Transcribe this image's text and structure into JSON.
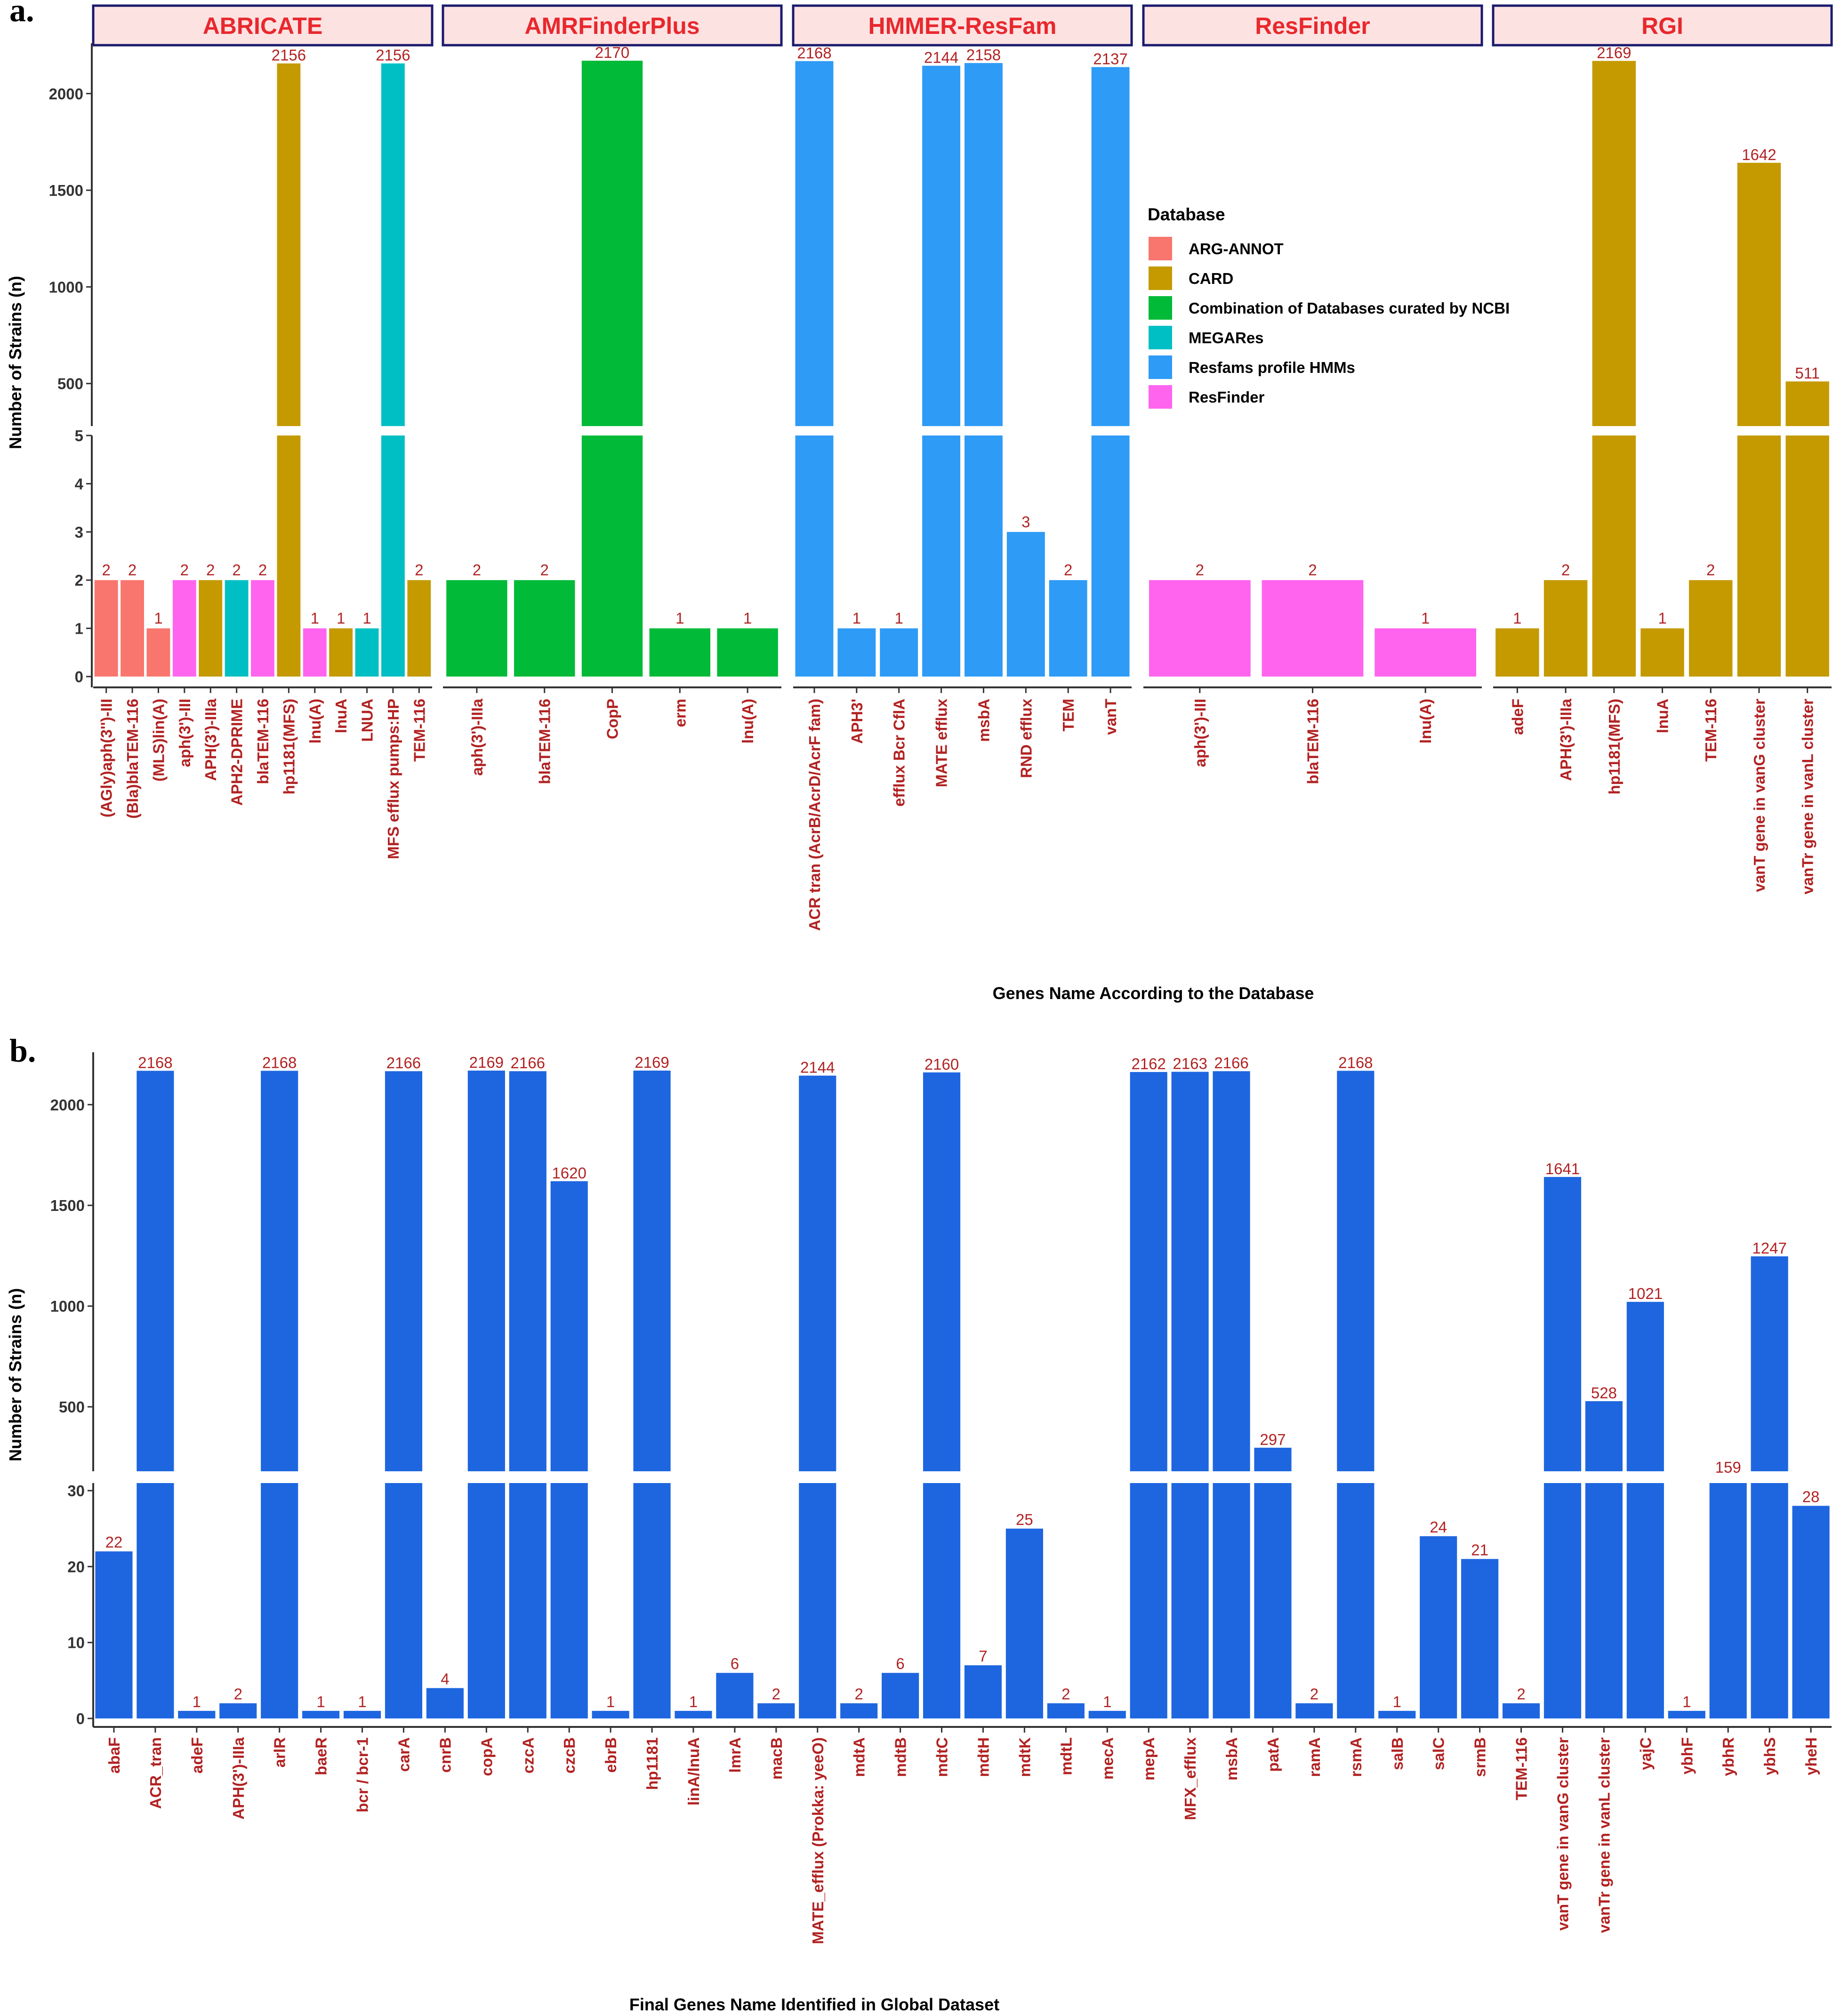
{
  "panel_a_label": "a.",
  "panel_b_label": "b.",
  "colors": {
    "ARG-ANNOT": "#F8766D",
    "CARD": "#C49A00",
    "Combination of Databases curated by NCBI": "#00BA38",
    "MEGARes": "#00BFC4",
    "Resfams profile HMMs": "#2E9BF6",
    "ResFinder": "#FF64EF",
    "panel_b_bar": "#1E66E0",
    "value_label": "#B22222",
    "strip_fill": "#FDE2E2",
    "strip_border": "#1A1A6E",
    "strip_text": "#E8282D"
  },
  "chart_data": [
    {
      "type": "bar",
      "title": "",
      "xlabel": "Genes Name According to the Database",
      "ylabel": "Number of Strains (n)",
      "axis_break": {
        "lower_ylim": [
          0,
          5
        ],
        "upper_ylim": [
          280,
          2260
        ]
      },
      "upper_ticks": [
        500,
        1000,
        1500,
        2000
      ],
      "lower_ticks": [
        0,
        1,
        2,
        3,
        4,
        5
      ],
      "legend": {
        "title": "Database",
        "position": "right",
        "entries": [
          "ARG-ANNOT",
          "CARD",
          "Combination of Databases curated by NCBI",
          "MEGARes",
          "Resfams profile HMMs",
          "ResFinder"
        ]
      },
      "facets": [
        {
          "name": "ABRICATE",
          "bars": [
            {
              "gene": "(AGly)aph(3'')-III",
              "value": 2,
              "db": "ARG-ANNOT"
            },
            {
              "gene": "(Bla)blaTEM-116",
              "value": 2,
              "db": "ARG-ANNOT"
            },
            {
              "gene": "(MLS)lin(A)",
              "value": 1,
              "db": "ARG-ANNOT"
            },
            {
              "gene": "aph(3')-III",
              "value": 2,
              "db": "ResFinder"
            },
            {
              "gene": "APH(3')-IIIa",
              "value": 2,
              "db": "CARD"
            },
            {
              "gene": "APH2-DPRIME",
              "value": 2,
              "db": "MEGARes"
            },
            {
              "gene": "blaTEM-116",
              "value": 2,
              "db": "ResFinder"
            },
            {
              "gene": "hp1181(MFS)",
              "value": 2156,
              "db": "CARD"
            },
            {
              "gene": "lnu(A)",
              "value": 1,
              "db": "ResFinder"
            },
            {
              "gene": "lnuA",
              "value": 1,
              "db": "CARD"
            },
            {
              "gene": "LNUA",
              "value": 1,
              "db": "MEGARes"
            },
            {
              "gene": "MFS efflux pumps:HP",
              "value": 2156,
              "db": "MEGARes"
            },
            {
              "gene": "TEM-116",
              "value": 2,
              "db": "CARD"
            }
          ]
        },
        {
          "name": "AMRFinderPlus",
          "bars": [
            {
              "gene": "aph(3')-IIIa",
              "value": 2,
              "db": "Combination of Databases curated by NCBI"
            },
            {
              "gene": "blaTEM-116",
              "value": 2,
              "db": "Combination of Databases curated by NCBI"
            },
            {
              "gene": "CopP",
              "value": 2170,
              "db": "Combination of Databases curated by NCBI"
            },
            {
              "gene": "erm",
              "value": 1,
              "db": "Combination of Databases curated by NCBI"
            },
            {
              "gene": "lnu(A)",
              "value": 1,
              "db": "Combination of Databases curated by NCBI"
            }
          ]
        },
        {
          "name": "HMMER-ResFam",
          "bars": [
            {
              "gene": "ACR tran (AcrB/AcrD/AcrF fam)",
              "value": 2168,
              "db": "Resfams profile HMMs"
            },
            {
              "gene": "APH3'",
              "value": 1,
              "db": "Resfams profile HMMs"
            },
            {
              "gene": "efflux Bcr CflA",
              "value": 1,
              "db": "Resfams profile HMMs"
            },
            {
              "gene": "MATE efflux",
              "value": 2144,
              "db": "Resfams profile HMMs"
            },
            {
              "gene": "msbA",
              "value": 2158,
              "db": "Resfams profile HMMs"
            },
            {
              "gene": "RND efflux",
              "value": 3,
              "db": "Resfams profile HMMs"
            },
            {
              "gene": "TEM",
              "value": 2,
              "db": "Resfams profile HMMs"
            },
            {
              "gene": "vanT",
              "value": 2137,
              "db": "Resfams profile HMMs"
            }
          ]
        },
        {
          "name": "ResFinder",
          "bars": [
            {
              "gene": "aph(3')-III",
              "value": 2,
              "db": "ResFinder"
            },
            {
              "gene": "blaTEM-116",
              "value": 2,
              "db": "ResFinder"
            },
            {
              "gene": "lnu(A)",
              "value": 1,
              "db": "ResFinder"
            }
          ]
        },
        {
          "name": "RGI",
          "bars": [
            {
              "gene": "adeF",
              "value": 1,
              "db": "CARD"
            },
            {
              "gene": "APH(3')-IIIa",
              "value": 2,
              "db": "CARD"
            },
            {
              "gene": "hp1181(MFS)",
              "value": 2169,
              "db": "CARD"
            },
            {
              "gene": "lnuA",
              "value": 1,
              "db": "CARD"
            },
            {
              "gene": "TEM-116",
              "value": 2,
              "db": "CARD"
            },
            {
              "gene": "vanT gene in vanG cluster",
              "value": 1642,
              "db": "CARD"
            },
            {
              "gene": "vanTr gene in vanL cluster",
              "value": 511,
              "db": "CARD"
            }
          ]
        }
      ]
    },
    {
      "type": "bar",
      "title": "",
      "xlabel": "Final Genes Name Identified in Global Dataset",
      "ylabel": "Number of Strains (n)",
      "axis_break": {
        "lower_ylim": [
          0,
          31
        ],
        "upper_ylim": [
          180,
          2260
        ]
      },
      "upper_ticks": [
        500,
        1000,
        1500,
        2000
      ],
      "lower_ticks": [
        0,
        10,
        20,
        30
      ],
      "categories": [
        "abaF",
        "ACR_tran",
        "adeF",
        "APH(3')-IIIa",
        "arlR",
        "baeR",
        "bcr / bcr-1",
        "carA",
        "cnrB",
        "copA",
        "czcA",
        "czcB",
        "ebrB",
        "hp1181",
        "linA/lnuA",
        "lmrA",
        "macB",
        "MATE_efflux (Prokka: yeeO)",
        "mdtA",
        "mdtB",
        "mdtC",
        "mdtH",
        "mdtK",
        "mdtL",
        "mecA",
        "mepA",
        "MFX_efflux",
        "msbA",
        "patA",
        "ramA",
        "rsmA",
        "salB",
        "salC",
        "srmB",
        "TEM-116",
        "vanT gene in vanG cluster",
        "vanTr gene in vanL cluster",
        "yajC",
        "ybhF",
        "ybhR",
        "ybhS",
        "yheH"
      ],
      "values": [
        22,
        2168,
        1,
        2,
        2168,
        1,
        1,
        2166,
        4,
        2169,
        2166,
        1620,
        1,
        2169,
        1,
        6,
        2,
        2144,
        2,
        6,
        2160,
        7,
        25,
        2,
        1,
        2162,
        2163,
        2166,
        297,
        2,
        2168,
        1,
        24,
        21,
        2,
        1641,
        528,
        1021,
        1,
        159,
        1247,
        28
      ]
    }
  ]
}
